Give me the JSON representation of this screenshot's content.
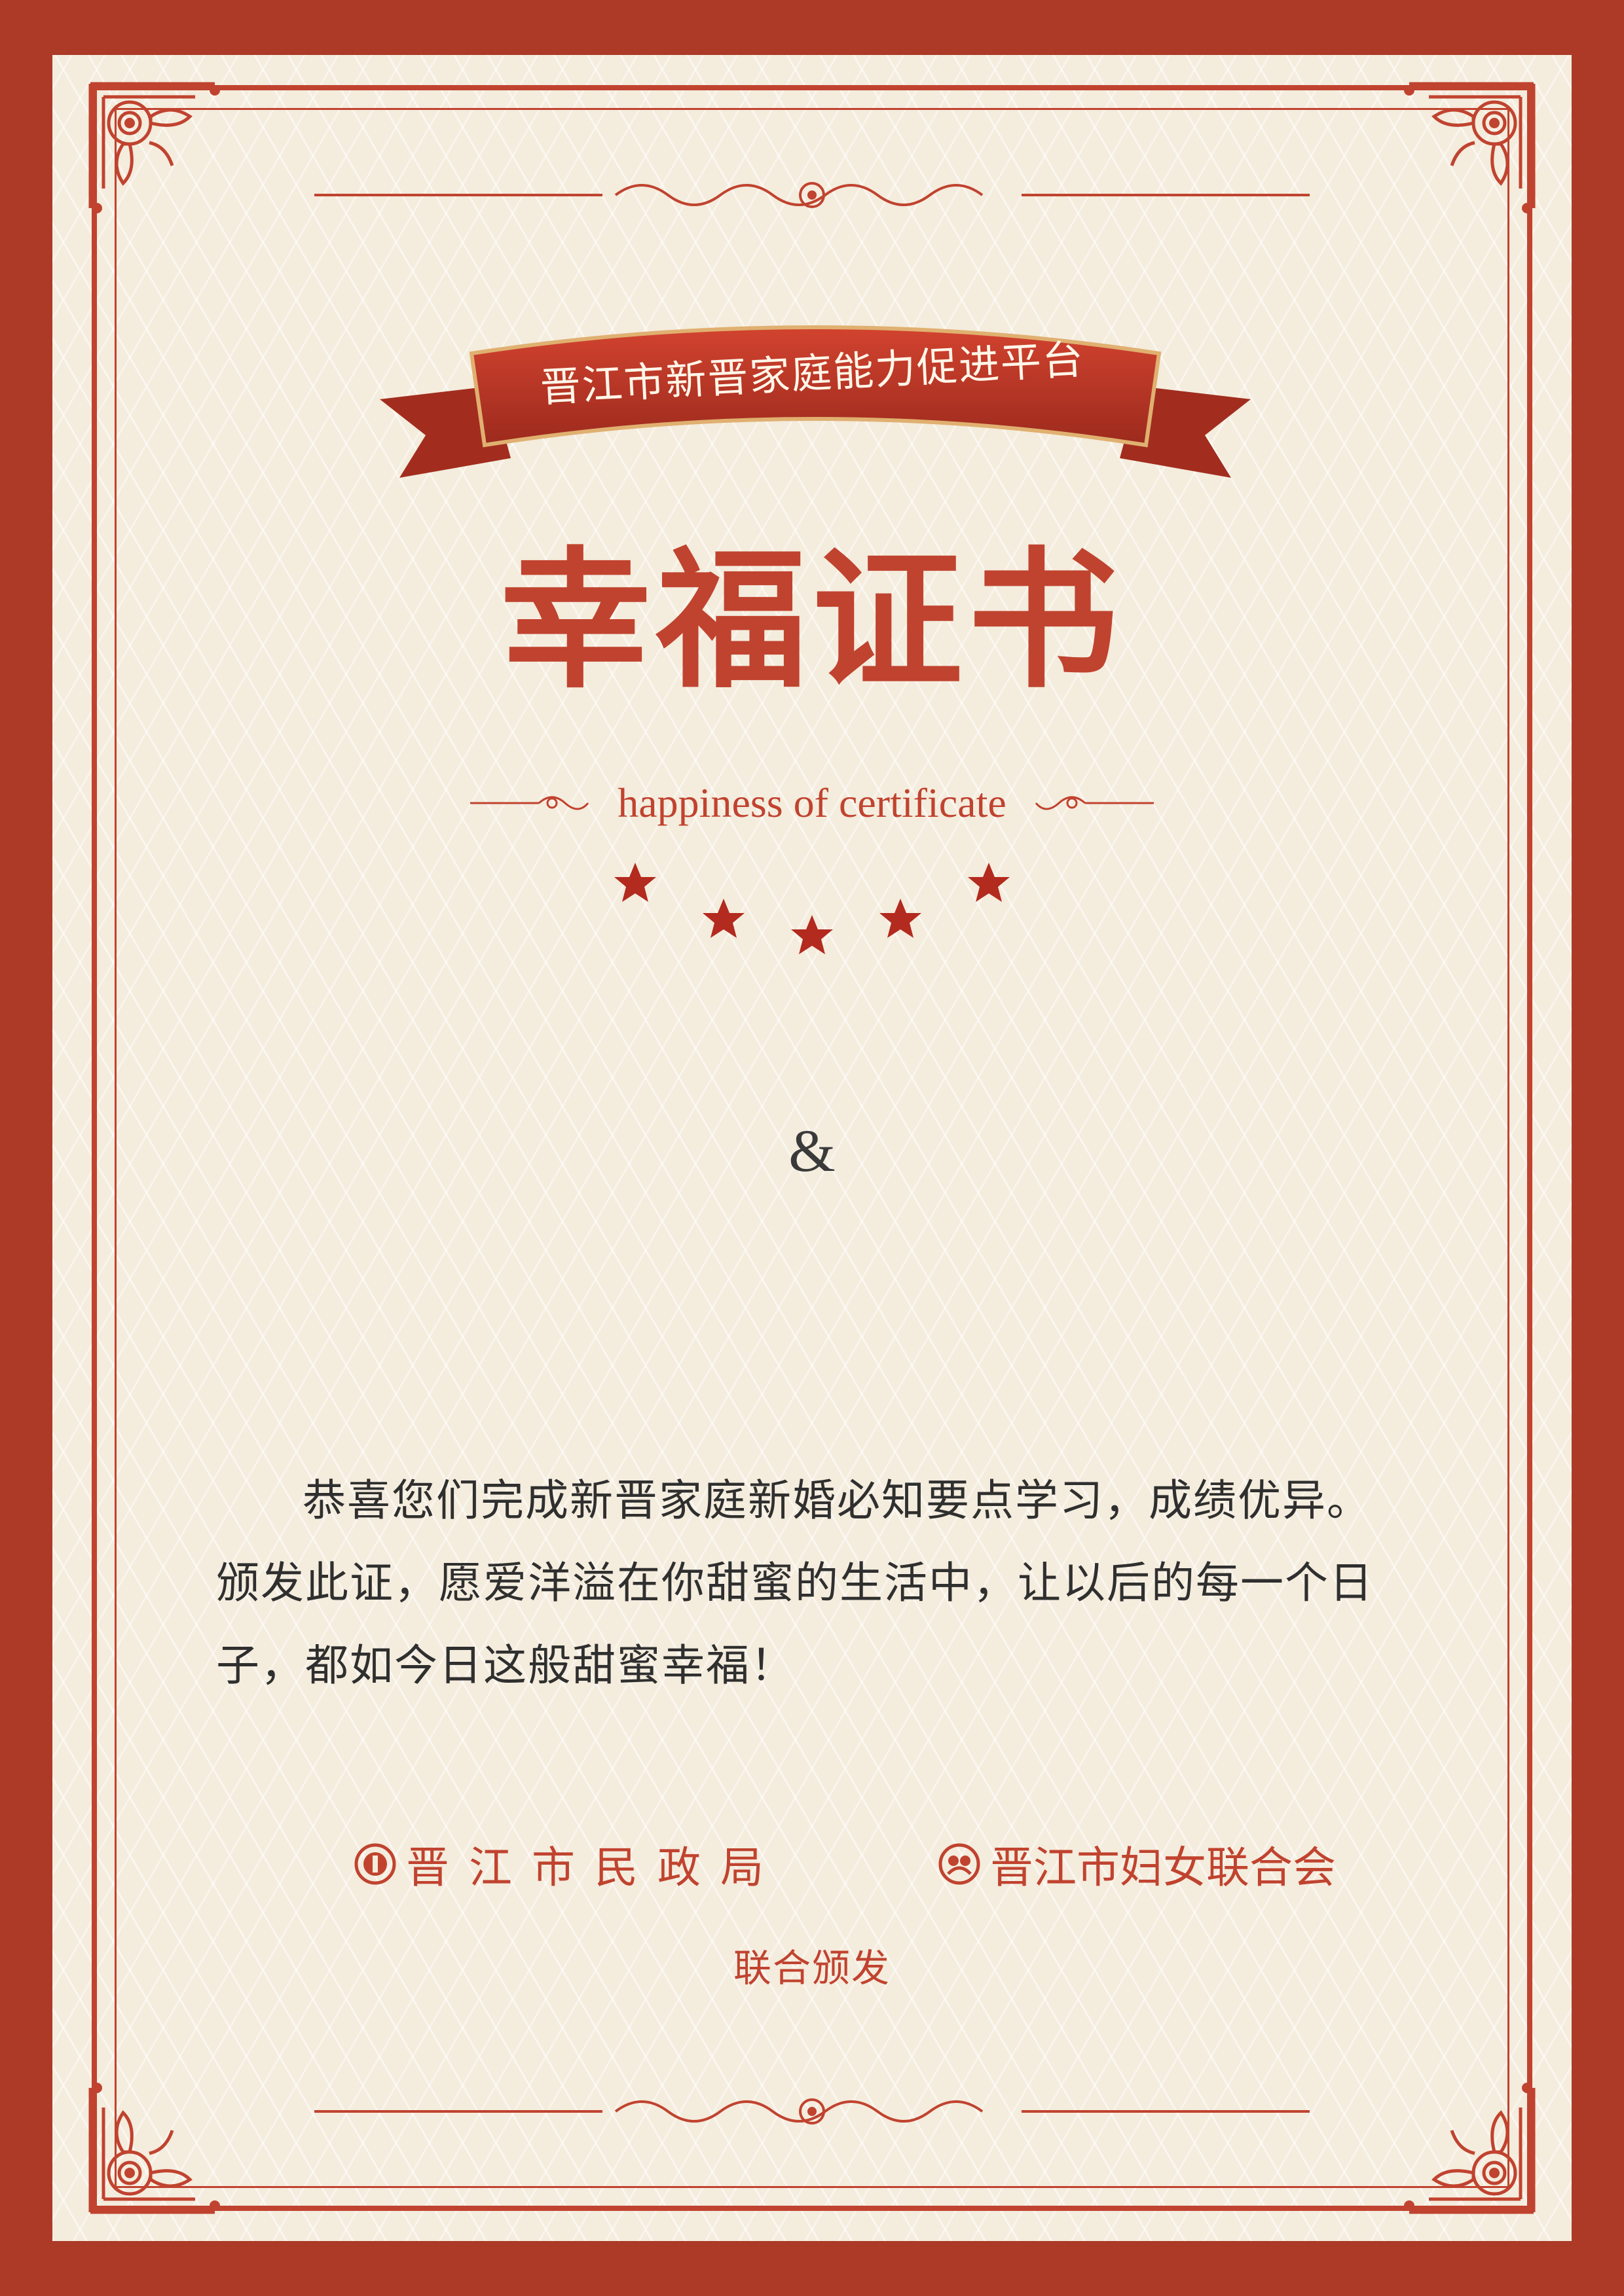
{
  "banner": {
    "text": "晋江市新晋家庭能力促进平台"
  },
  "title": "幸福证书",
  "subtitle": "happiness of certificate",
  "star_count": 5,
  "names_separator": "&",
  "body": {
    "paragraph": "恭喜您们完成新晋家庭新婚必知要点学习，成绩优异。颁发此证，愿爱洋溢在你甜蜜的生活中，让以后的每一个日子，都如今日这般甜蜜幸福！"
  },
  "issuers": [
    {
      "name": "晋江市民政局",
      "icon": "civil-affairs-emblem-icon"
    },
    {
      "name": "晋江市妇女联合会",
      "icon": "womens-federation-emblem-icon"
    }
  ],
  "joint_issue": "联合颁发",
  "colors": {
    "border": "#ac3a27",
    "accent": "#c0432f",
    "paper": "#f4ecdd",
    "text": "#2f2f2f"
  }
}
